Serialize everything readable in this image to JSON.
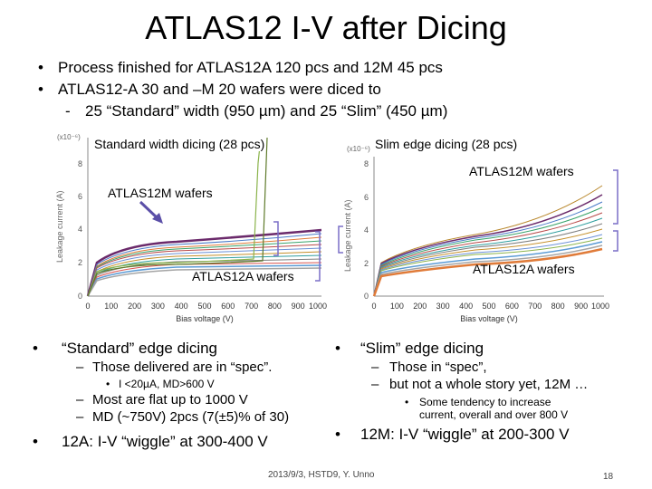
{
  "slide": {
    "title": "ATLAS12 I-V after Dicing",
    "bullets_top": [
      "Process finished for ATLAS12A 120 pcs and 12M 45 pcs",
      "ATLAS12-A 30 and –M 20 wafers were diced to",
      "25 “Standard” width (950 µm) and 25 “Slim” (450 µm)"
    ],
    "left_plot": {
      "title": "Standard width dicing (28 pcs)",
      "label_12m": "ATLAS12M wafers",
      "label_12a": "ATLAS12A wafers",
      "y_exp": "(x10⁻⁶)",
      "ylabel": "Leakage current (A)",
      "xlabel": "Bias voltage (V)",
      "x_ticks": [
        "0",
        "100",
        "200",
        "300",
        "400",
        "500",
        "600",
        "700",
        "800",
        "900",
        "1000"
      ],
      "y_ticks": [
        "0",
        "2",
        "4",
        "6",
        "8"
      ]
    },
    "right_plot": {
      "title": "Slim edge dicing (28 pcs)",
      "label_12m": "ATLAS12M wafers",
      "label_12a": "ATLAS12A wafers",
      "y_exp": "(x10⁻⁶)",
      "ylabel": "Leakage current (A)",
      "xlabel": "Bias voltage (V)",
      "x_ticks": [
        "0",
        "100",
        "200",
        "300",
        "400",
        "500",
        "600",
        "700",
        "800",
        "900",
        "1000"
      ],
      "y_ticks": [
        "0",
        "2",
        "4",
        "6",
        "8"
      ]
    },
    "left_notes": {
      "h1": "“Standard” edge dicing",
      "s1": "Those delivered are in “spec”.",
      "s1a": "I <20µA, MD>600 V",
      "s2": "Most are flat up to 1000 V",
      "s3": "MD (~750V) 2pcs (7(±5)% of 30)",
      "h2": "12A: I-V “wiggle” at 300-400 V"
    },
    "right_notes": {
      "h1": "“Slim” edge dicing",
      "s1": "Those in “spec”,",
      "s2": "but not a whole story yet, 12M …",
      "s2a1": "Some tendency to increase",
      "s2a2": "current, overall and over 800 V",
      "h2": "12M: I-V “wiggle” at 200-300 V"
    },
    "footer": "2013/9/3, HSTD9, Y. Unno",
    "page_number": "18"
  }
}
